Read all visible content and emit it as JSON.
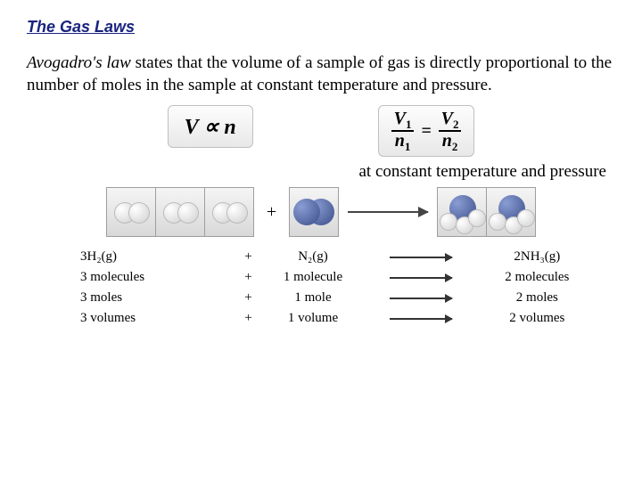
{
  "title": "The Gas Laws",
  "paragraph": {
    "law_name": "Avogadro's law",
    "rest": " states that the volume of a sample of gas is directly proportional to the number of moles in the sample at constant temperature and pressure."
  },
  "formulas": {
    "simple": "V ∝ n",
    "fraction": {
      "v1": "V",
      "s1": "1",
      "n1": "n",
      "v2": "V",
      "s2": "2",
      "n2": "n"
    }
  },
  "condition": "at constant temperature and pressure",
  "diagram": {
    "left_count": 3,
    "left_type": "H2",
    "mid_count": 1,
    "mid_type": "N2",
    "right_count": 2,
    "right_type": "NH3",
    "colors": {
      "box_border": "#9e9e9e",
      "box_bg_top": "#f5f5f5",
      "box_bg_bot": "#d8d8d8",
      "white_light": "#ffffff",
      "white_dark": "#cfcfcf",
      "blue_light": "#8a9dd4",
      "blue_dark": "#3a4d87",
      "arrow": "#444444"
    }
  },
  "equation": {
    "r1": "3H₂(g)",
    "p": "+",
    "r2": "N₂(g)",
    "prod": "2NH₃(g)"
  },
  "rows": [
    {
      "a": "3 molecules",
      "b": "1 molecule",
      "c": "2 molecules"
    },
    {
      "a": "3 moles",
      "b": "1 mole",
      "c": "2 moles"
    },
    {
      "a": "3 volumes",
      "b": "1 volume",
      "c": "2 volumes"
    }
  ]
}
